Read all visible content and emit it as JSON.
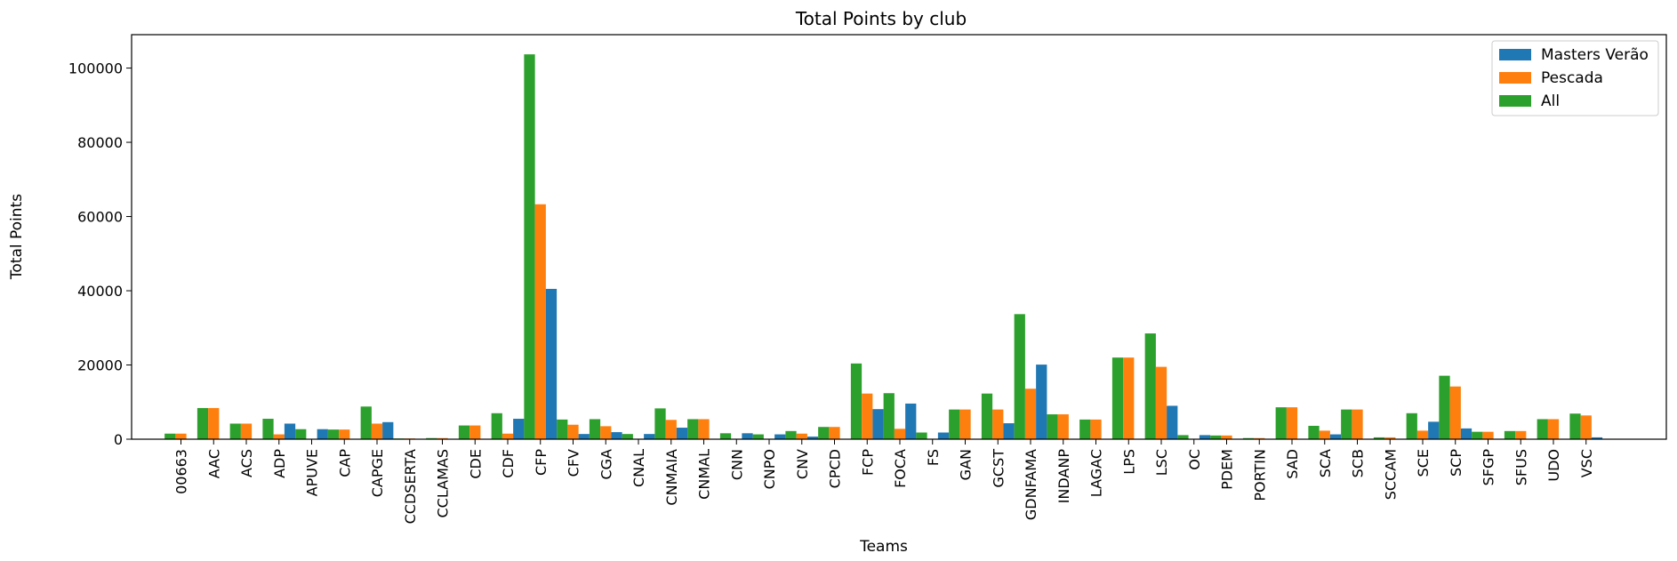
{
  "chart_data": {
    "type": "bar",
    "title": "Total Points by club",
    "xlabel": "Teams",
    "ylabel": "Total Points",
    "ylim": [
      0,
      109000
    ],
    "yticks": [
      0,
      20000,
      40000,
      60000,
      80000,
      100000
    ],
    "legend_position": "top-right",
    "grid": false,
    "categories": [
      "00663",
      "AAC",
      "ACS",
      "ADP",
      "APUVE",
      "CAP",
      "CAPGE",
      "CCDSERTA",
      "CCLAMAS",
      "CDE",
      "CDF",
      "CFP",
      "CFV",
      "CGA",
      "CNAL",
      "CNMAIA",
      "CNMAL",
      "CNN",
      "CNPO",
      "CNV",
      "CPCD",
      "FCP",
      "FOCA",
      "FS",
      "GAN",
      "GCST",
      "GDNFAMA",
      "INDANP",
      "LAGAC",
      "LPS",
      "LSC",
      "OC",
      "PDEM",
      "PORTIN",
      "SAD",
      "SCA",
      "SCB",
      "SCCAM",
      "SCE",
      "SCP",
      "SFGP",
      "SFUS",
      "UDO",
      "VSC"
    ],
    "series": [
      {
        "name": "Masters Verão",
        "color": "#1f77b4",
        "values": [
          0,
          0,
          0,
          4200,
          2700,
          0,
          4600,
          0,
          0,
          0,
          5500,
          40500,
          1400,
          1900,
          1400,
          3100,
          0,
          1600,
          1300,
          700,
          0,
          8100,
          9600,
          1800,
          0,
          4300,
          20100,
          0,
          0,
          0,
          9000,
          1100,
          0,
          0,
          0,
          1300,
          0,
          0,
          4700,
          2900,
          0,
          0,
          0,
          500
        ]
      },
      {
        "name": "Pescada",
        "color": "#ff7f0e",
        "values": [
          1500,
          8400,
          4200,
          1300,
          0,
          2600,
          4200,
          200,
          300,
          3700,
          1500,
          63300,
          3900,
          3500,
          0,
          5200,
          5400,
          0,
          0,
          1500,
          3300,
          12300,
          2800,
          0,
          8000,
          8000,
          13600,
          6700,
          5300,
          22000,
          19500,
          0,
          1000,
          300,
          8600,
          2300,
          8000,
          500,
          2300,
          14200,
          2000,
          2200,
          5400,
          6400
        ]
      },
      {
        "name": "All",
        "color": "#2ca02c",
        "values": [
          1500,
          8400,
          4200,
          5500,
          2700,
          2600,
          8800,
          200,
          300,
          3700,
          7000,
          103700,
          5300,
          5400,
          1400,
          8300,
          5400,
          1600,
          1300,
          2200,
          3300,
          20400,
          12400,
          1800,
          8000,
          12300,
          33700,
          6700,
          5300,
          22000,
          28500,
          1100,
          1000,
          300,
          8600,
          3600,
          8000,
          500,
          7000,
          17100,
          2000,
          2200,
          5400,
          6900
        ]
      }
    ]
  }
}
